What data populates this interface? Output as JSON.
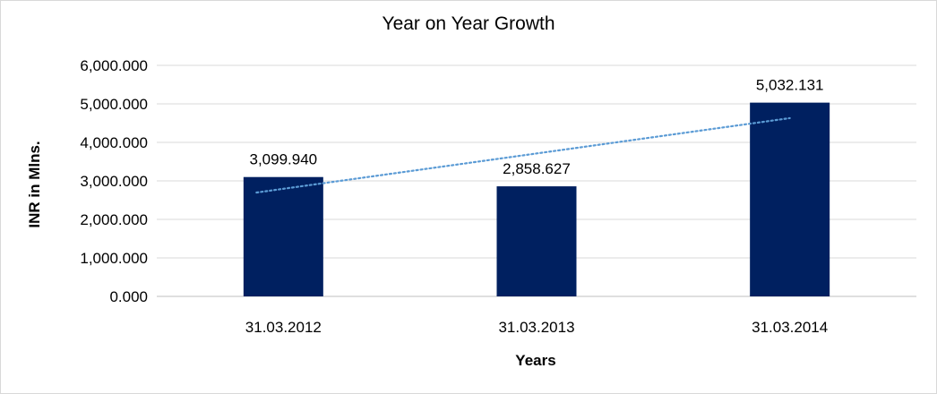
{
  "chart_data": {
    "type": "bar",
    "title": "Year on Year Growth",
    "xlabel": "Years",
    "ylabel": "INR in Mlns.",
    "categories": [
      "31.03.2012",
      "31.03.2013",
      "31.03.2014"
    ],
    "values": [
      3099.94,
      2858.627,
      5032.131
    ],
    "data_labels": [
      "3,099.940",
      "2,858.627",
      "5,032.131"
    ],
    "ylim": [
      0,
      6000
    ],
    "yticks": [
      0,
      1000,
      2000,
      3000,
      4000,
      5000,
      6000
    ],
    "ytick_labels": [
      "0.000",
      "1,000.000",
      "2,000.000",
      "3,000.000",
      "4,000.000",
      "5,000.000",
      "6,000.000"
    ],
    "grid": true,
    "legend": "none",
    "trendline": {
      "type": "linear",
      "style": "dotted",
      "color": "#5b9bd5"
    },
    "bar_color": "#002060"
  }
}
